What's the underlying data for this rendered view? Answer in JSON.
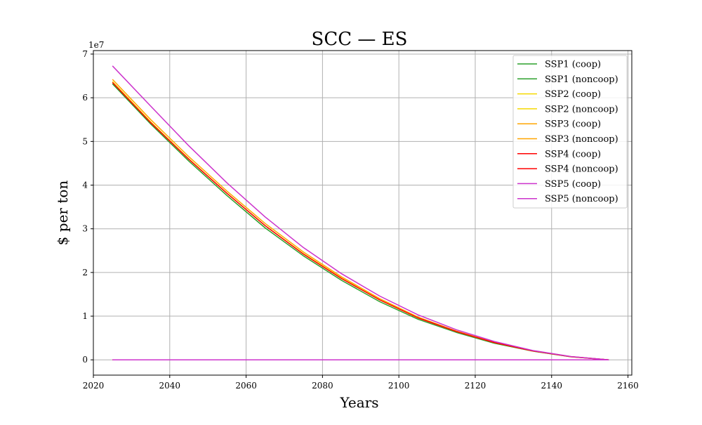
{
  "chart_data": {
    "type": "line",
    "title": "SCC — ES",
    "xlabel": "Years",
    "ylabel": "$ per ton",
    "y_offset_label": "1e7",
    "y_scale_factor": 10000000,
    "xlim": [
      2020,
      2161
    ],
    "ylim": [
      -3500000,
      70800000
    ],
    "x_ticks": [
      2020,
      2040,
      2060,
      2080,
      2100,
      2120,
      2140,
      2160
    ],
    "y_ticks": [
      0,
      1,
      2,
      3,
      4,
      5,
      6,
      7
    ],
    "grid": true,
    "legend_position": "top-right",
    "x": [
      2025,
      2035,
      2045,
      2055,
      2065,
      2075,
      2085,
      2095,
      2105,
      2115,
      2125,
      2135,
      2145,
      2155
    ],
    "series": [
      {
        "name": "SSP1 (coop)",
        "color": "#2ca02c",
        "values": [
          63200000,
          54000000,
          45500000,
          37600000,
          30200000,
          23800000,
          18200000,
          13300000,
          9300000,
          6300000,
          3800000,
          2000000,
          700000,
          0
        ]
      },
      {
        "name": "SSP1 (noncoop)",
        "color": "#2ca02c",
        "values": [
          0,
          0,
          0,
          0,
          0,
          0,
          0,
          0,
          0,
          0,
          0,
          0,
          0,
          0
        ]
      },
      {
        "name": "SSP2 (coop)",
        "color": "#f5d800",
        "values": [
          63700000,
          54500000,
          46000000,
          38100000,
          30700000,
          24300000,
          18700000,
          13700000,
          9600000,
          6500000,
          3950000,
          2050000,
          720000,
          0
        ]
      },
      {
        "name": "SSP2 (noncoop)",
        "color": "#f5d800",
        "values": [
          0,
          0,
          0,
          0,
          0,
          0,
          0,
          0,
          0,
          0,
          0,
          0,
          0,
          0
        ]
      },
      {
        "name": "SSP3 (coop)",
        "color": "#ffa500",
        "values": [
          64200000,
          55000000,
          46500000,
          38600000,
          31200000,
          24700000,
          19000000,
          14000000,
          9800000,
          6600000,
          4000000,
          2100000,
          740000,
          0
        ]
      },
      {
        "name": "SSP3 (noncoop)",
        "color": "#ffa500",
        "values": [
          0,
          0,
          0,
          0,
          0,
          0,
          0,
          0,
          0,
          0,
          0,
          0,
          0,
          0
        ]
      },
      {
        "name": "SSP4 (coop)",
        "color": "#ff0000",
        "values": [
          63500000,
          54300000,
          45900000,
          38100000,
          30700000,
          24200000,
          18600000,
          13700000,
          9600000,
          6500000,
          3950000,
          2050000,
          720000,
          0
        ]
      },
      {
        "name": "SSP4 (noncoop)",
        "color": "#ff0000",
        "values": [
          0,
          0,
          0,
          0,
          0,
          0,
          0,
          0,
          0,
          0,
          0,
          0,
          0,
          0
        ]
      },
      {
        "name": "SSP5 (coop)",
        "color": "#cc33cc",
        "values": [
          67300000,
          58100000,
          49000000,
          40500000,
          32700000,
          25700000,
          19700000,
          14600000,
          10300000,
          6900000,
          4200000,
          2150000,
          760000,
          0
        ]
      },
      {
        "name": "SSP5 (noncoop)",
        "color": "#cc33cc",
        "values": [
          0,
          0,
          0,
          0,
          0,
          0,
          0,
          0,
          0,
          0,
          0,
          0,
          0,
          0
        ]
      }
    ]
  }
}
